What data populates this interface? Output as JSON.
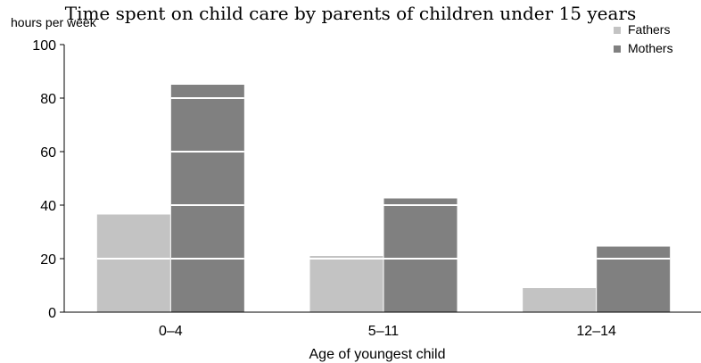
{
  "chart_data": {
    "type": "bar",
    "title": "Time spent on child care by parents of children under 15 years",
    "ylabel": "hours per week",
    "xlabel": "Age of youngest child",
    "categories": [
      "0–4",
      "5–11",
      "12–14"
    ],
    "series": [
      {
        "name": "Fathers",
        "color": "#c3c3c3",
        "values": [
          36.5,
          21,
          9
        ]
      },
      {
        "name": "Mothers",
        "color": "#808080",
        "values": [
          85,
          42.5,
          24.5
        ]
      }
    ],
    "ylim": [
      0,
      100
    ],
    "yticks": [
      "0",
      "20",
      "40",
      "60",
      "80",
      "100"
    ],
    "grid": "white lines over bars",
    "legend_position": "top-right"
  }
}
